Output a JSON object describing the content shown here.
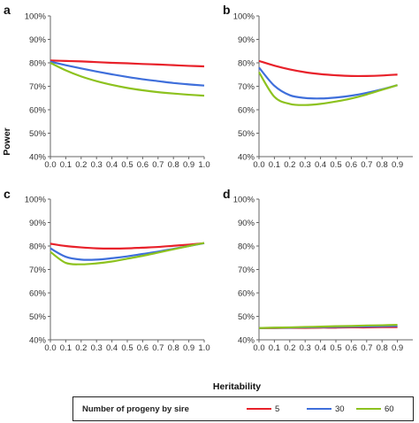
{
  "figure": {
    "xlabel": "Heritability",
    "ylabel": "Power"
  },
  "legend": {
    "title": "Number of progeny by sire",
    "items": [
      {
        "label": "5",
        "color": "#e8212a"
      },
      {
        "label": "30",
        "color": "#3f6fdb"
      },
      {
        "label": "60",
        "color": "#8dc21f"
      }
    ]
  },
  "chart_data": [
    {
      "panel": "a",
      "type": "line",
      "x": [
        0.0,
        0.1,
        0.2,
        0.3,
        0.4,
        0.5,
        0.6,
        0.7,
        0.8,
        0.9,
        1.0
      ],
      "x_tick_labels": [
        "0.0",
        "0.1",
        "0.2",
        "0.3",
        "0.4",
        "0.5",
        "0.6",
        "0.7",
        "0.8",
        "0.9",
        "1.0"
      ],
      "y_tick_labels": [
        "40%",
        "50%",
        "60%",
        "70%",
        "80%",
        "90%",
        "100%"
      ],
      "ylim": [
        40,
        100
      ],
      "series": [
        {
          "name": "5",
          "color": "#e8212a",
          "values": [
            81.0,
            80.8,
            80.6,
            80.3,
            80.0,
            79.8,
            79.5,
            79.3,
            79.0,
            78.7,
            78.5
          ]
        },
        {
          "name": "30",
          "color": "#3f6fdb",
          "values": [
            80.5,
            79.0,
            77.6,
            76.3,
            75.1,
            74.0,
            73.0,
            72.2,
            71.4,
            70.8,
            70.3
          ]
        },
        {
          "name": "60",
          "color": "#8dc21f",
          "values": [
            80.0,
            76.8,
            74.2,
            72.2,
            70.6,
            69.3,
            68.3,
            67.5,
            66.9,
            66.4,
            66.0
          ]
        }
      ]
    },
    {
      "panel": "b",
      "type": "line",
      "x": [
        0.0,
        0.1,
        0.2,
        0.3,
        0.4,
        0.5,
        0.6,
        0.7,
        0.8,
        0.9
      ],
      "x_tick_labels": [
        "0.0",
        "0.1",
        "0.2",
        "0.3",
        "0.4",
        "0.5",
        "0.6",
        "0.7",
        "0.8",
        "0.9"
      ],
      "y_tick_labels": [
        "40%",
        "50%",
        "60%",
        "70%",
        "80%",
        "90%",
        "100%"
      ],
      "ylim": [
        40,
        100
      ],
      "series": [
        {
          "name": "5",
          "color": "#e8212a",
          "values": [
            80.8,
            78.8,
            77.2,
            76.0,
            75.2,
            74.7,
            74.4,
            74.4,
            74.6,
            75.0
          ]
        },
        {
          "name": "30",
          "color": "#3f6fdb",
          "values": [
            78.0,
            70.2,
            66.2,
            65.0,
            64.8,
            65.2,
            66.0,
            67.2,
            68.7,
            70.5
          ]
        },
        {
          "name": "60",
          "color": "#8dc21f",
          "values": [
            76.0,
            65.5,
            62.5,
            62.0,
            62.5,
            63.5,
            64.8,
            66.5,
            68.5,
            70.5
          ]
        }
      ]
    },
    {
      "panel": "c",
      "type": "line",
      "x": [
        0.0,
        0.1,
        0.2,
        0.3,
        0.4,
        0.5,
        0.6,
        0.7,
        0.8,
        0.9,
        1.0
      ],
      "x_tick_labels": [
        "0.0",
        "0.1",
        "0.2",
        "0.3",
        "0.4",
        "0.5",
        "0.6",
        "0.7",
        "0.8",
        "0.9",
        "1.0"
      ],
      "y_tick_labels": [
        "40%",
        "50%",
        "60%",
        "70%",
        "80%",
        "90%",
        "100%"
      ],
      "ylim": [
        40,
        100
      ],
      "series": [
        {
          "name": "5",
          "color": "#e8212a",
          "values": [
            81.0,
            80.0,
            79.4,
            79.0,
            78.9,
            79.0,
            79.3,
            79.6,
            80.1,
            80.6,
            81.2
          ]
        },
        {
          "name": "30",
          "color": "#3f6fdb",
          "values": [
            79.0,
            75.4,
            74.2,
            74.2,
            74.8,
            75.6,
            76.6,
            77.6,
            78.8,
            80.0,
            81.2
          ]
        },
        {
          "name": "60",
          "color": "#8dc21f",
          "values": [
            77.5,
            72.8,
            72.2,
            72.6,
            73.4,
            74.6,
            75.8,
            77.2,
            78.6,
            80.0,
            81.3
          ]
        }
      ]
    },
    {
      "panel": "d",
      "type": "line",
      "x": [
        0.0,
        0.1,
        0.2,
        0.3,
        0.4,
        0.5,
        0.6,
        0.7,
        0.8,
        0.9
      ],
      "x_tick_labels": [
        "0.0",
        "0.1",
        "0.2",
        "0.3",
        "0.4",
        "0.5",
        "0.6",
        "0.7",
        "0.8",
        "0.9"
      ],
      "y_tick_labels": [
        "40%",
        "50%",
        "60%",
        "70%",
        "80%",
        "90%",
        "100%"
      ],
      "ylim": [
        40,
        100
      ],
      "series": [
        {
          "name": "5",
          "color": "#e8212a",
          "values": [
            45.0,
            45.0,
            45.1,
            45.1,
            45.2,
            45.2,
            45.3,
            45.3,
            45.4,
            45.4
          ]
        },
        {
          "name": "30",
          "color": "#3f6fdb",
          "values": [
            45.0,
            45.1,
            45.2,
            45.3,
            45.4,
            45.5,
            45.6,
            45.7,
            45.8,
            45.9
          ]
        },
        {
          "name": "60",
          "color": "#8dc21f",
          "values": [
            45.0,
            45.2,
            45.3,
            45.5,
            45.6,
            45.8,
            45.9,
            46.1,
            46.2,
            46.4
          ]
        }
      ]
    }
  ]
}
